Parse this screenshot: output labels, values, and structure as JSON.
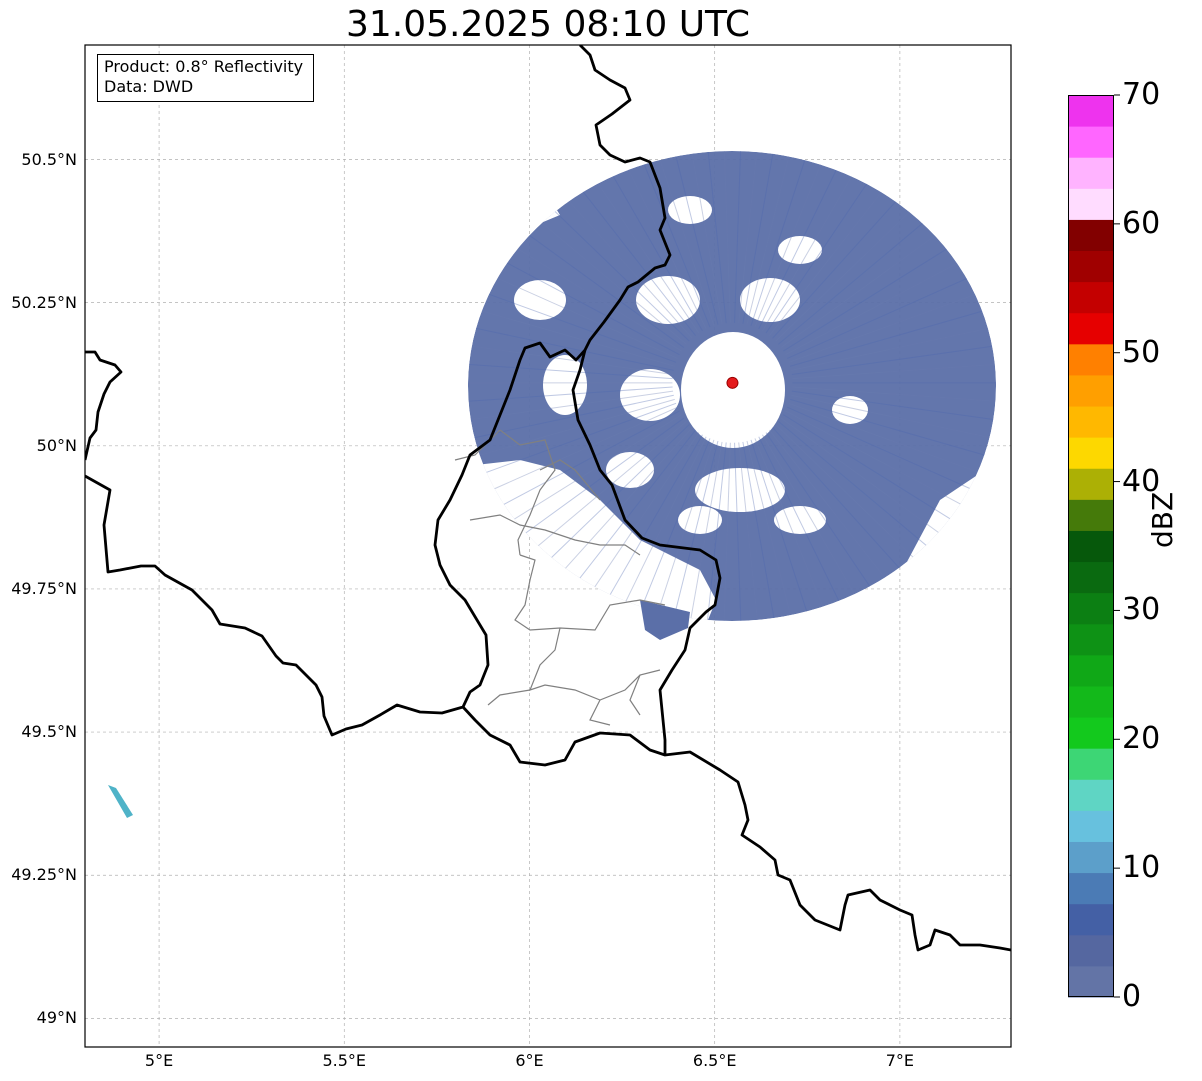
{
  "title": "31.05.2025 08:10 UTC",
  "info_box": {
    "line1": "Product: 0.8° Reflectivity",
    "line2": "Data: DWD"
  },
  "map": {
    "extent": {
      "lon_min": 4.8,
      "lon_max": 7.3,
      "lat_min": 48.95,
      "lat_max": 50.7
    },
    "lat_ticks": [
      {
        "value": 50.5,
        "label": "50.5°N"
      },
      {
        "value": 50.25,
        "label": "50.25°N"
      },
      {
        "value": 50.0,
        "label": "50°N"
      },
      {
        "value": 49.75,
        "label": "49.75°N"
      },
      {
        "value": 49.5,
        "label": "49.5°N"
      },
      {
        "value": 49.25,
        "label": "49.25°N"
      },
      {
        "value": 49.0,
        "label": "49°N"
      }
    ],
    "lon_ticks": [
      {
        "value": 5.0,
        "label": "5°E"
      },
      {
        "value": 5.5,
        "label": "5.5°E"
      },
      {
        "value": 6.0,
        "label": "6°E"
      },
      {
        "value": 6.5,
        "label": "6.5°E"
      },
      {
        "value": 7.0,
        "label": "7°E"
      }
    ],
    "grid": true,
    "radar_site": {
      "lon": 6.548,
      "lat": 50.11,
      "color": "#e41a1c"
    },
    "border_color": "#000000",
    "admin_border_color": "#808080",
    "echo_color": "#5b6fa8"
  },
  "colorbar": {
    "label": "dBZ",
    "min": 0,
    "max": 70,
    "step": 2.5,
    "tick_labels": [
      "0",
      "10",
      "20",
      "30",
      "40",
      "50",
      "60",
      "70"
    ],
    "colors": [
      "#6374a6",
      "#5567a0",
      "#4460a5",
      "#4b7bb5",
      "#5c9fca",
      "#67c1de",
      "#5fd5c4",
      "#3dd675",
      "#13c91d",
      "#13b91a",
      "#10a817",
      "#0e9215",
      "#0c7f13",
      "#0a6a10",
      "#06580b",
      "#457a0a",
      "#acb005",
      "#fdd800",
      "#ffb800",
      "#ff9f00",
      "#ff8000",
      "#e60000",
      "#c40000",
      "#a00000",
      "#820000",
      "#ffdcff",
      "#ffb3ff",
      "#ff66ff",
      "#ee33ee"
    ]
  }
}
